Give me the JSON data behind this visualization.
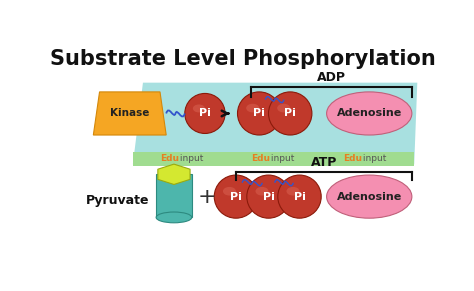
{
  "title": "Substrate Level Phosphorylation",
  "title_fontsize": 15,
  "title_fontweight": "bold",
  "bg_color": "#ffffff",
  "teal_color": "#a8e0e0",
  "teal_strip_color": "#a0dc90",
  "kinase_color": "#f5a623",
  "kinase_edge_color": "#d4880a",
  "pi_color": "#c0392b",
  "pi_highlight_color": "#d96050",
  "pi_edge_color": "#8b1a0a",
  "pi_text_color": "#ffffff",
  "adenosine_color": "#f48fb1",
  "adenosine_edge_color": "#c0607a",
  "arrow_color": "#111111",
  "curly_color": "#3355cc",
  "edu_color": "#e67e22",
  "edu_input_color": "#555555",
  "pyruvate_hex_color": "#d4e830",
  "pyruvate_hex_edge_color": "#9aaa10",
  "pyruvate_cyl_color": "#4db6ac",
  "pyruvate_cyl_edge_color": "#2d8a80",
  "pyruvate_cyl_top_color": "#6ecec4",
  "adp_label": "ADP",
  "atp_label": "ATP",
  "kinase_label": "Kinase",
  "pyruvate_label": "Pyruvate",
  "pi_label": "Pi",
  "adenosine_label": "Adenosine",
  "edu_label": "Edu",
  "input_label": " input",
  "plus_color": "#333333",
  "bracket_color": "#111111"
}
